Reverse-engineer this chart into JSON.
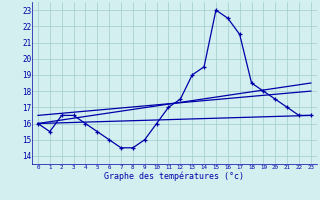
{
  "hours": [
    0,
    1,
    2,
    3,
    4,
    5,
    6,
    7,
    8,
    9,
    10,
    11,
    12,
    13,
    14,
    15,
    16,
    17,
    18,
    19,
    20,
    21,
    22,
    23
  ],
  "temp_main": [
    16.0,
    15.5,
    16.5,
    16.5,
    16.0,
    15.5,
    15.0,
    14.5,
    14.5,
    15.0,
    16.0,
    17.0,
    17.5,
    19.0,
    19.5,
    23.0,
    22.5,
    21.5,
    18.5,
    18.0,
    17.5,
    17.0,
    16.5,
    16.5
  ],
  "line2_x": [
    0,
    23
  ],
  "line2_y": [
    16.0,
    16.5
  ],
  "line3_x": [
    0,
    23
  ],
  "line3_y": [
    16.5,
    18.0
  ],
  "line4_x": [
    0,
    23
  ],
  "line4_y": [
    16.0,
    18.5
  ],
  "bg_color": "#d4efef",
  "grid_color": "#a0cccc",
  "line_color": "#0000aa",
  "xlabel": "Graphe des températures (°c)",
  "xlim": [
    -0.5,
    23.5
  ],
  "ylim": [
    13.5,
    23.5
  ],
  "yticks": [
    14,
    15,
    16,
    17,
    18,
    19,
    20,
    21,
    22,
    23
  ],
  "xticks": [
    0,
    1,
    2,
    3,
    4,
    5,
    6,
    7,
    8,
    9,
    10,
    11,
    12,
    13,
    14,
    15,
    16,
    17,
    18,
    19,
    20,
    21,
    22,
    23
  ]
}
